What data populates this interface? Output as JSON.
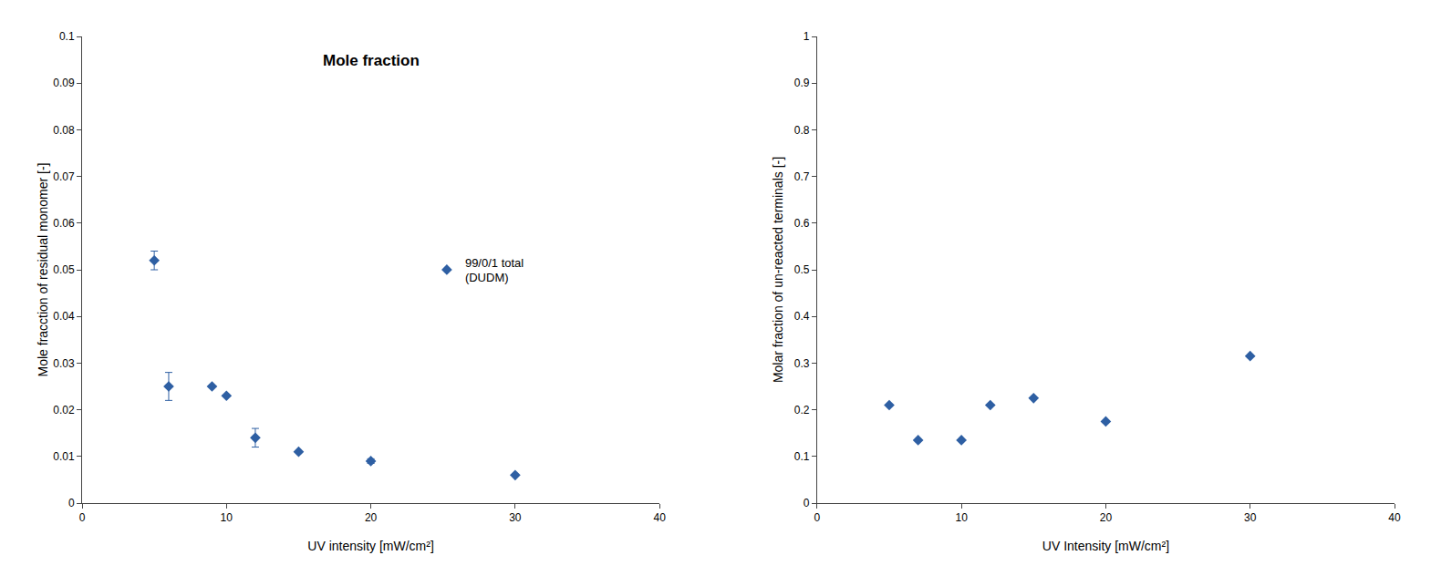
{
  "chart_data": [
    {
      "type": "scatter",
      "title": "Mole fraction",
      "xlabel": "UV intensity [mW/cm²]",
      "ylabel": "Mole fracction of residual monomer [-]",
      "x": [
        5,
        6,
        9,
        10,
        12,
        15,
        20,
        30
      ],
      "series": [
        {
          "name": "99/0/1 total\n(DUDM)",
          "color": "#2E5FA3",
          "marker": "diamond",
          "values": [
            0.052,
            0.025,
            0.025,
            0.023,
            0.014,
            0.011,
            0.009,
            0.006
          ],
          "yerr": [
            0.002,
            0.003,
            0.0,
            0.0,
            0.002,
            0.0,
            0.0005,
            0.0
          ]
        }
      ],
      "xlim": [
        0,
        40
      ],
      "xticks": [
        0,
        10,
        20,
        30,
        40
      ],
      "ylim": [
        0,
        0.1
      ],
      "yticks": [
        0,
        0.01,
        0.02,
        0.03,
        0.04,
        0.05,
        0.06,
        0.07,
        0.08,
        0.09,
        0.1
      ],
      "grid": false,
      "legend": "right"
    },
    {
      "type": "scatter",
      "xlabel": "UV Intensity [mW/cm²]",
      "ylabel": "Molar fraction of un-reacted terminals [-]",
      "x": [
        5,
        7,
        10,
        12,
        15,
        20,
        30
      ],
      "series": [
        {
          "color": "#2E5FA3",
          "marker": "diamond",
          "values": [
            0.21,
            0.135,
            0.135,
            0.21,
            0.225,
            0.175,
            0.315
          ]
        }
      ],
      "xlim": [
        0,
        40
      ],
      "xticks": [
        0,
        10,
        20,
        30,
        40
      ],
      "ylim": [
        0,
        1
      ],
      "yticks": [
        0,
        0.1,
        0.2,
        0.3,
        0.4,
        0.5,
        0.6,
        0.7,
        0.8,
        0.9,
        1
      ],
      "grid": false
    }
  ]
}
